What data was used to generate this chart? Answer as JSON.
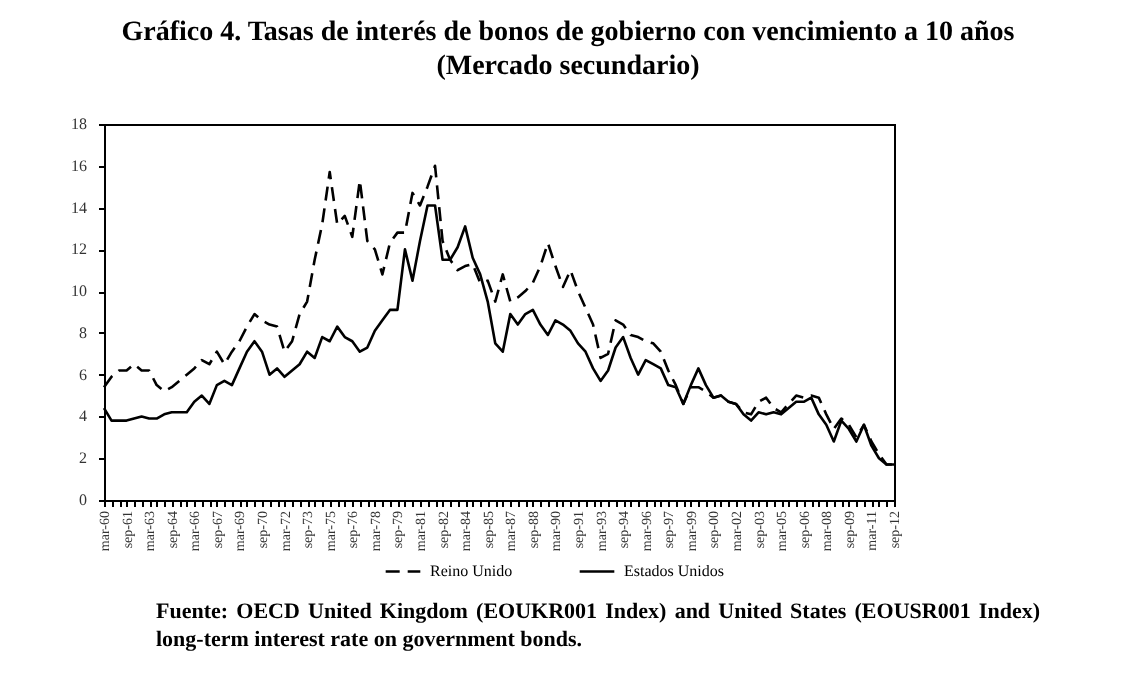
{
  "chart_data": {
    "type": "line",
    "title": "Gráfico 4. Tasas de interés de bonos de gobierno con vencimiento a 10 años (Mercado secundario)",
    "categories": [
      "mar-60",
      null,
      null,
      "sep-61",
      null,
      null,
      "mar-63",
      null,
      null,
      "sep-64",
      null,
      null,
      "mar-66",
      null,
      null,
      "sep-67",
      null,
      null,
      "mar-69",
      null,
      null,
      "sep-70",
      null,
      null,
      "mar-72",
      null,
      null,
      "sep-73",
      null,
      null,
      "mar-75",
      null,
      null,
      "sep-76",
      null,
      null,
      "mar-78",
      null,
      null,
      "sep-79",
      null,
      null,
      "mar-81",
      null,
      null,
      "sep-82",
      null,
      null,
      "mar-84",
      null,
      null,
      "sep-85",
      null,
      null,
      "mar-87",
      null,
      null,
      "sep-88",
      null,
      null,
      "mar-90",
      null,
      null,
      "sep-91",
      null,
      null,
      "mar-93",
      null,
      null,
      "sep-94",
      null,
      null,
      "mar-96",
      null,
      null,
      "sep-97",
      null,
      null,
      "mar-99",
      null,
      null,
      "sep-00",
      null,
      null,
      "mar-02",
      null,
      null,
      "sep-03",
      null,
      null,
      "mar-05",
      null,
      null,
      "sep-06",
      null,
      null,
      "mar-08",
      null,
      null,
      "sep-09",
      null,
      null,
      "mar-11",
      null,
      null,
      "sep-12"
    ],
    "series": [
      {
        "name": "Reino Unido",
        "color": "#000000",
        "line_style": "dashed",
        "values": [
          5.4,
          5.9,
          6.2,
          6.2,
          6.5,
          6.2,
          6.2,
          5.5,
          5.2,
          5.4,
          5.7,
          6.0,
          6.3,
          6.7,
          6.5,
          7.1,
          6.5,
          7.1,
          7.6,
          8.3,
          8.9,
          8.6,
          8.4,
          8.3,
          7.1,
          7.6,
          8.9,
          9.5,
          11.5,
          13.2,
          15.7,
          13.2,
          13.6,
          12.6,
          15.3,
          12.4,
          12.0,
          10.8,
          12.3,
          12.8,
          12.8,
          14.7,
          14.1,
          15.0,
          16.0,
          12.4,
          11.5,
          11.0,
          11.2,
          11.3,
          10.4,
          10.5,
          9.5,
          10.8,
          9.5,
          9.7,
          10.0,
          10.4,
          11.2,
          12.3,
          11.2,
          10.2,
          11.0,
          10.0,
          9.2,
          8.4,
          6.8,
          7.0,
          8.6,
          8.4,
          7.9,
          7.8,
          7.6,
          7.5,
          7.1,
          6.2,
          5.5,
          4.6,
          5.4,
          5.4,
          5.2,
          4.9,
          5.0,
          4.7,
          4.6,
          4.2,
          4.1,
          4.7,
          4.9,
          4.4,
          4.2,
          4.6,
          5.0,
          4.9,
          5.0,
          4.9,
          4.1,
          3.4,
          3.9,
          3.6,
          3.0,
          3.6,
          2.8,
          2.2,
          1.7,
          1.7
        ]
      },
      {
        "name": "Estados Unidos",
        "color": "#000000",
        "line_style": "solid",
        "values": [
          4.4,
          3.8,
          3.8,
          3.8,
          3.9,
          4.0,
          3.9,
          3.9,
          4.1,
          4.2,
          4.2,
          4.2,
          4.7,
          5.0,
          4.6,
          5.5,
          5.7,
          5.5,
          6.3,
          7.1,
          7.6,
          7.1,
          6.0,
          6.3,
          5.9,
          6.2,
          6.5,
          7.1,
          6.8,
          7.8,
          7.6,
          8.3,
          7.8,
          7.6,
          7.1,
          7.3,
          8.1,
          8.6,
          9.1,
          9.1,
          12.0,
          10.5,
          12.4,
          14.1,
          14.1,
          11.5,
          11.5,
          12.1,
          13.1,
          11.6,
          10.8,
          9.5,
          7.5,
          7.1,
          8.9,
          8.4,
          8.9,
          9.1,
          8.4,
          7.9,
          8.6,
          8.4,
          8.1,
          7.5,
          7.1,
          6.3,
          5.7,
          6.2,
          7.3,
          7.8,
          6.8,
          6.0,
          6.7,
          6.5,
          6.3,
          5.5,
          5.4,
          4.6,
          5.5,
          6.3,
          5.5,
          4.9,
          5.0,
          4.7,
          4.6,
          4.1,
          3.8,
          4.2,
          4.1,
          4.2,
          4.1,
          4.4,
          4.7,
          4.7,
          4.9,
          4.1,
          3.6,
          2.8,
          3.8,
          3.4,
          2.8,
          3.6,
          2.6,
          2.0,
          1.7,
          1.7
        ]
      }
    ],
    "ylim": [
      0,
      18
    ],
    "yticks": [
      0,
      2,
      4,
      6,
      8,
      10,
      12,
      14,
      16,
      18
    ],
    "legend": "bottom",
    "annotations": [
      "Fuente: OECD United Kingdom (EOUKR001 Index) and United States (EOUSR001 Index) long-term interest rate on government bonds."
    ]
  }
}
